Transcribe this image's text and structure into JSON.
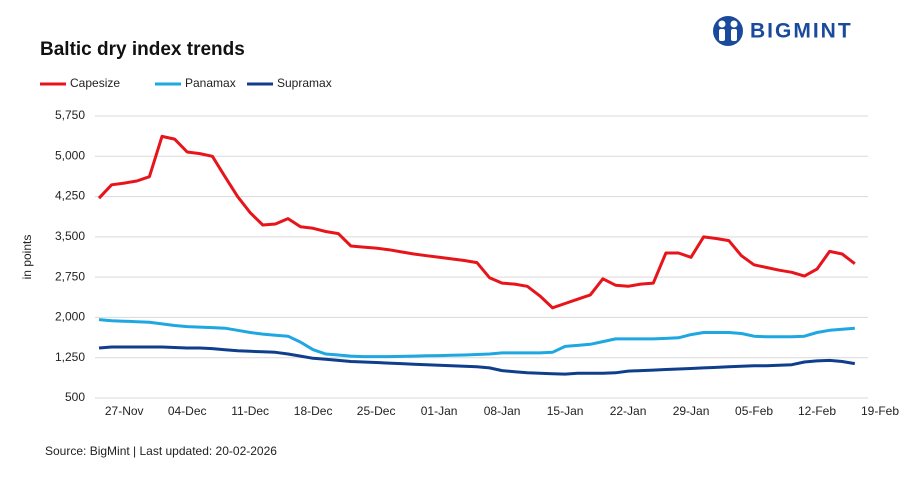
{
  "logo": "BIGMINT",
  "source": "Source: BigMint | Last updated: 20-02-2026",
  "chart_data": {
    "type": "line",
    "title": "Baltic dry index trends",
    "y_label": "in points",
    "categories": [
      null,
      null,
      "27-Nov",
      null,
      null,
      null,
      null,
      "04-Dec",
      null,
      null,
      null,
      null,
      "11-Dec",
      null,
      null,
      null,
      null,
      "18-Dec",
      null,
      null,
      null,
      null,
      "25-Dec",
      null,
      null,
      null,
      null,
      "01-Jan",
      null,
      null,
      null,
      null,
      "08-Jan",
      null,
      null,
      null,
      null,
      "15-Jan",
      null,
      null,
      null,
      null,
      "22-Jan",
      null,
      null,
      null,
      null,
      "29-Jan",
      null,
      null,
      null,
      null,
      "05-Feb",
      null,
      null,
      null,
      null,
      "12-Feb",
      null,
      null,
      null,
      null,
      "19-Feb"
    ],
    "series": [
      {
        "name": "Capesize",
        "color": "#e8141b",
        "values": [
          4220,
          4470,
          4500,
          4540,
          4620,
          5370,
          5320,
          5080,
          5050,
          5000,
          4620,
          4250,
          3950,
          3720,
          3740,
          3840,
          3690,
          3660,
          3600,
          3560,
          3330,
          3310,
          3290,
          3260,
          3220,
          3180,
          3150,
          3120,
          3090,
          3060,
          3020,
          2740,
          2640,
          2620,
          2580,
          2400,
          2180,
          2260,
          2340,
          2420,
          2720,
          2600,
          2580,
          2620,
          2640,
          3200,
          3200,
          3120,
          3500,
          3470,
          3430,
          3150,
          2980,
          2930,
          2880,
          2840,
          2770,
          2900,
          3230,
          3180,
          3000,
          null,
          null
        ]
      },
      {
        "name": "Panamax",
        "color": "#1ea7e1",
        "values": [
          1960,
          1940,
          1930,
          1920,
          1910,
          1880,
          1850,
          1830,
          1820,
          1810,
          1800,
          1760,
          1720,
          1690,
          1670,
          1650,
          1540,
          1400,
          1320,
          1300,
          1280,
          1270,
          1270,
          1270,
          1275,
          1280,
          1285,
          1290,
          1295,
          1300,
          1310,
          1320,
          1340,
          1340,
          1340,
          1340,
          1350,
          1460,
          1480,
          1500,
          1550,
          1600,
          1600,
          1600,
          1600,
          1610,
          1620,
          1680,
          1720,
          1720,
          1720,
          1700,
          1650,
          1640,
          1640,
          1640,
          1650,
          1720,
          1760,
          1780,
          1800,
          null,
          null
        ]
      },
      {
        "name": "Supramax",
        "color": "#0f3f8c",
        "values": [
          1430,
          1450,
          1450,
          1450,
          1450,
          1450,
          1440,
          1430,
          1430,
          1420,
          1400,
          1380,
          1370,
          1360,
          1350,
          1320,
          1280,
          1240,
          1220,
          1200,
          1180,
          1170,
          1160,
          1150,
          1140,
          1130,
          1120,
          1110,
          1100,
          1090,
          1080,
          1060,
          1010,
          990,
          970,
          960,
          950,
          945,
          960,
          960,
          960,
          970,
          1000,
          1010,
          1020,
          1030,
          1040,
          1050,
          1060,
          1070,
          1080,
          1090,
          1100,
          1100,
          1110,
          1120,
          1170,
          1190,
          1200,
          1180,
          1140,
          null,
          null
        ]
      }
    ],
    "ylim": [
      500,
      5750
    ],
    "yticks": [
      500,
      {
        "value": 1250,
        "label": "1,250"
      },
      {
        "value": 2000,
        "label": "2,000"
      },
      {
        "value": 2750,
        "label": "2,750"
      },
      {
        "value": 3500,
        "label": "3,500"
      },
      {
        "value": 4250,
        "label": "4,250"
      },
      {
        "value": 5000,
        "label": "5,000"
      },
      {
        "value": 5750,
        "label": "5,750"
      }
    ],
    "grid": true
  }
}
